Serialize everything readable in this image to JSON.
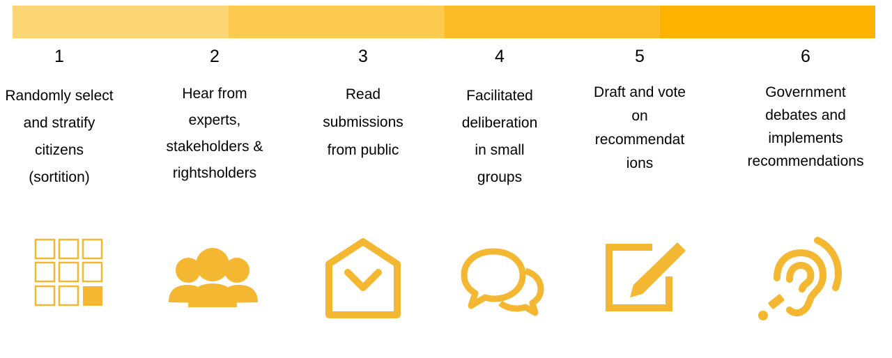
{
  "colors": {
    "accent": "#F4B731",
    "bar_segments": [
      "#FCD574",
      "#FCCA4E",
      "#FBBB27",
      "#FDB200"
    ]
  },
  "steps": [
    {
      "number": "1",
      "text": "Randomly select\nand stratify\ncitizens\n(sortition)",
      "icon": "grid-select-icon"
    },
    {
      "number": "2",
      "text": "Hear from\nexperts,\nstakeholders &\nrightsholders",
      "icon": "people-group-icon"
    },
    {
      "number": "3",
      "text": "Read\nsubmissions\nfrom public",
      "icon": "open-envelope-icon"
    },
    {
      "number": "4",
      "text": "Facilitated\ndeliberation\nin small\ngroups",
      "icon": "chat-bubbles-icon"
    },
    {
      "number": "5",
      "text": "Draft and vote\non\nrecommendat\nions",
      "icon": "edit-note-icon"
    },
    {
      "number": "6",
      "text": "Government\ndebates and\nimplements\nrecommendations",
      "icon": "hearing-listen-icon"
    }
  ]
}
